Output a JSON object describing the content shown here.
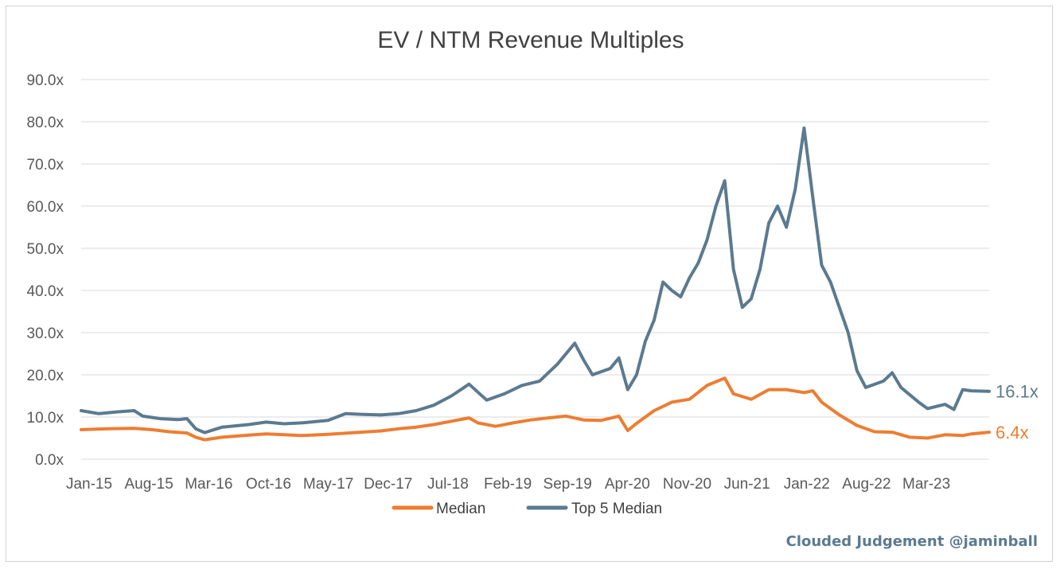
{
  "colors": {
    "median": "#ED7D31",
    "top5": "#5B7A8F",
    "credit": "#5B7A8F"
  },
  "credit": "Clouded Judgement @jaminball",
  "chart_data": {
    "type": "line",
    "title": "EV / NTM Revenue Multiples",
    "xlabel": "",
    "ylabel": "",
    "ylim": [
      0,
      90
    ],
    "y_ticks": [
      "0.0x",
      "10.0x",
      "20.0x",
      "30.0x",
      "40.0x",
      "50.0x",
      "60.0x",
      "70.0x",
      "80.0x",
      "90.0x"
    ],
    "x_ticks": [
      "Jan-15",
      "Aug-15",
      "Mar-16",
      "Oct-16",
      "May-17",
      "Dec-17",
      "Jul-18",
      "Feb-19",
      "Sep-19",
      "Apr-20",
      "Nov-20",
      "Jun-21",
      "Jan-22",
      "Aug-22",
      "Mar-23"
    ],
    "x_range": [
      "2015-01",
      "2023-08"
    ],
    "grid": true,
    "legend_position": "bottom",
    "series": [
      {
        "name": "Median",
        "color": "#ED7D31",
        "end_label": "6.4x",
        "points": [
          [
            "2015-01",
            7.0
          ],
          [
            "2015-04",
            7.2
          ],
          [
            "2015-07",
            7.3
          ],
          [
            "2015-09",
            7.0
          ],
          [
            "2015-11",
            6.5
          ],
          [
            "2016-01",
            6.2
          ],
          [
            "2016-02",
            5.2
          ],
          [
            "2016-03",
            4.6
          ],
          [
            "2016-05",
            5.2
          ],
          [
            "2016-08",
            5.7
          ],
          [
            "2016-10",
            6.0
          ],
          [
            "2016-12",
            5.8
          ],
          [
            "2017-02",
            5.6
          ],
          [
            "2017-05",
            5.9
          ],
          [
            "2017-08",
            6.3
          ],
          [
            "2017-11",
            6.7
          ],
          [
            "2018-01",
            7.2
          ],
          [
            "2018-03",
            7.6
          ],
          [
            "2018-05",
            8.2
          ],
          [
            "2018-07",
            9.0
          ],
          [
            "2018-09",
            9.8
          ],
          [
            "2018-10",
            8.6
          ],
          [
            "2018-12",
            7.8
          ],
          [
            "2019-02",
            8.6
          ],
          [
            "2019-04",
            9.3
          ],
          [
            "2019-06",
            9.8
          ],
          [
            "2019-08",
            10.2
          ],
          [
            "2019-10",
            9.3
          ],
          [
            "2019-12",
            9.2
          ],
          [
            "2020-02",
            10.2
          ],
          [
            "2020-03",
            6.8
          ],
          [
            "2020-04",
            8.5
          ],
          [
            "2020-06",
            11.5
          ],
          [
            "2020-08",
            13.5
          ],
          [
            "2020-10",
            14.2
          ],
          [
            "2020-12",
            17.5
          ],
          [
            "2021-02",
            19.2
          ],
          [
            "2021-03",
            15.5
          ],
          [
            "2021-05",
            14.2
          ],
          [
            "2021-07",
            16.5
          ],
          [
            "2021-09",
            16.5
          ],
          [
            "2021-11",
            15.8
          ],
          [
            "2021-12",
            16.2
          ],
          [
            "2022-01",
            13.5
          ],
          [
            "2022-03",
            10.5
          ],
          [
            "2022-05",
            8.0
          ],
          [
            "2022-07",
            6.5
          ],
          [
            "2022-09",
            6.4
          ],
          [
            "2022-11",
            5.2
          ],
          [
            "2023-01",
            5.0
          ],
          [
            "2023-03",
            5.8
          ],
          [
            "2023-05",
            5.6
          ],
          [
            "2023-06",
            6.0
          ],
          [
            "2023-08",
            6.4
          ]
        ]
      },
      {
        "name": "Top 5 Median",
        "color": "#5B7A8F",
        "end_label": "16.1x",
        "points": [
          [
            "2015-01",
            11.5
          ],
          [
            "2015-03",
            10.8
          ],
          [
            "2015-05",
            11.2
          ],
          [
            "2015-07",
            11.5
          ],
          [
            "2015-08",
            10.2
          ],
          [
            "2015-10",
            9.6
          ],
          [
            "2015-12",
            9.4
          ],
          [
            "2016-01",
            9.6
          ],
          [
            "2016-02",
            7.2
          ],
          [
            "2016-03",
            6.3
          ],
          [
            "2016-05",
            7.6
          ],
          [
            "2016-08",
            8.2
          ],
          [
            "2016-10",
            8.8
          ],
          [
            "2016-12",
            8.4
          ],
          [
            "2017-02",
            8.6
          ],
          [
            "2017-05",
            9.2
          ],
          [
            "2017-07",
            10.8
          ],
          [
            "2017-09",
            10.6
          ],
          [
            "2017-11",
            10.5
          ],
          [
            "2018-01",
            10.8
          ],
          [
            "2018-03",
            11.5
          ],
          [
            "2018-05",
            12.8
          ],
          [
            "2018-07",
            15.0
          ],
          [
            "2018-09",
            17.8
          ],
          [
            "2018-11",
            14.0
          ],
          [
            "2019-01",
            15.5
          ],
          [
            "2019-03",
            17.5
          ],
          [
            "2019-05",
            18.5
          ],
          [
            "2019-07",
            22.5
          ],
          [
            "2019-09",
            27.5
          ],
          [
            "2019-10",
            23.5
          ],
          [
            "2019-11",
            20.0
          ],
          [
            "2020-01",
            21.5
          ],
          [
            "2020-02",
            24.0
          ],
          [
            "2020-03",
            16.5
          ],
          [
            "2020-04",
            20.0
          ],
          [
            "2020-05",
            28.0
          ],
          [
            "2020-06",
            33.0
          ],
          [
            "2020-07",
            42.0
          ],
          [
            "2020-08",
            40.0
          ],
          [
            "2020-09",
            38.5
          ],
          [
            "2020-10",
            43.0
          ],
          [
            "2020-11",
            46.5
          ],
          [
            "2020-12",
            52.0
          ],
          [
            "2021-01",
            60.0
          ],
          [
            "2021-02",
            66.0
          ],
          [
            "2021-03",
            45.0
          ],
          [
            "2021-04",
            36.0
          ],
          [
            "2021-05",
            38.0
          ],
          [
            "2021-06",
            45.0
          ],
          [
            "2021-07",
            56.0
          ],
          [
            "2021-08",
            60.0
          ],
          [
            "2021-09",
            55.0
          ],
          [
            "2021-10",
            64.0
          ],
          [
            "2021-11",
            78.5
          ],
          [
            "2021-12",
            62.0
          ],
          [
            "2022-01",
            46.0
          ],
          [
            "2022-02",
            42.0
          ],
          [
            "2022-03",
            36.0
          ],
          [
            "2022-04",
            30.0
          ],
          [
            "2022-05",
            21.0
          ],
          [
            "2022-06",
            17.0
          ],
          [
            "2022-08",
            18.5
          ],
          [
            "2022-09",
            20.5
          ],
          [
            "2022-10",
            17.0
          ],
          [
            "2022-12",
            13.5
          ],
          [
            "2023-01",
            12.0
          ],
          [
            "2023-03",
            13.0
          ],
          [
            "2023-04",
            11.8
          ],
          [
            "2023-05",
            16.5
          ],
          [
            "2023-06",
            16.2
          ],
          [
            "2023-08",
            16.1
          ]
        ]
      }
    ]
  }
}
